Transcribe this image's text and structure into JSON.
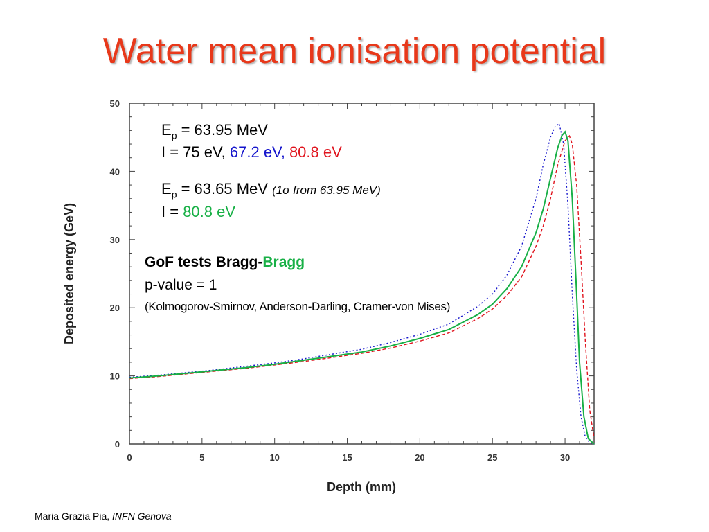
{
  "slide": {
    "title": "Water mean ionisation potential",
    "footer_author": "Maria Grazia Pia,",
    "footer_affiliation": "INFN Genova"
  },
  "annotations": {
    "block1_ep_label": "E",
    "block1_ep_sub": "p",
    "block1_ep_value": " = 63.95 MeV",
    "block1_i_prefix": "I = 75 eV, ",
    "block1_i_blue": "67.2 eV,",
    "block1_i_red": " 80.8 eV",
    "block2_ep_label": "E",
    "block2_ep_sub": "p",
    "block2_ep_value": " = 63.65 MeV ",
    "block2_sigma_note": "(1σ from 63.95 MeV)",
    "block2_i_prefix": "I = ",
    "block2_i_green": "80.8 eV",
    "gof_title_black": "GoF tests Bragg-",
    "gof_title_green": "Bragg",
    "gof_pvalue": "p-value = 1",
    "gof_tests": "(Kolmogorov-Smirnov, Anderson-Darling, Cramer-von Mises)"
  },
  "colors": {
    "title": "#e8381a",
    "blue": "#1515cc",
    "red": "#e0141e",
    "green": "#18b046"
  },
  "chart_data": {
    "type": "line",
    "xlabel": "Depth (mm)",
    "ylabel": "Deposited energy (GeV)",
    "xlim": [
      0,
      32
    ],
    "ylim": [
      0,
      50
    ],
    "xticks": [
      0,
      5,
      10,
      15,
      20,
      25,
      30
    ],
    "yticks": [
      0,
      10,
      20,
      30,
      40,
      50
    ],
    "series": [
      {
        "color": "#000000",
        "dash": "10,4",
        "x": [
          0,
          2,
          4,
          6,
          8,
          10,
          12,
          14,
          16,
          18,
          20,
          22,
          24,
          25,
          26,
          27,
          28,
          28.5,
          29,
          29.5,
          29.8,
          30.0,
          30.2,
          30.5,
          30.8,
          31.0,
          31.3,
          31.6,
          32
        ],
        "y": [
          9.7,
          10.0,
          10.4,
          10.8,
          11.2,
          11.7,
          12.3,
          12.9,
          13.5,
          14.4,
          15.5,
          16.8,
          19.0,
          20.5,
          22.8,
          26.0,
          31.0,
          34.5,
          39.0,
          43.5,
          45.3,
          45.8,
          44.5,
          36.0,
          22.0,
          12.0,
          4.0,
          0.8,
          0
        ]
      },
      {
        "color": "#1515cc",
        "dash": "2,3",
        "x": [
          0,
          2,
          4,
          6,
          8,
          10,
          12,
          14,
          16,
          18,
          20,
          22,
          24,
          25,
          26,
          27,
          27.5,
          28,
          28.5,
          29,
          29.3,
          29.6,
          29.9,
          30.2,
          30.5,
          30.8,
          31.1,
          31.4,
          31.7,
          32
        ],
        "y": [
          9.8,
          10.1,
          10.5,
          10.9,
          11.4,
          11.9,
          12.5,
          13.2,
          13.9,
          14.9,
          16.1,
          17.6,
          20.2,
          22.0,
          24.8,
          29.0,
          32.5,
          36.0,
          41.0,
          45.0,
          46.5,
          47.0,
          44.0,
          35.0,
          22.0,
          11.0,
          4.0,
          1.0,
          0.2,
          0
        ]
      },
      {
        "color": "#e0141e",
        "dash": "5,3",
        "x": [
          0,
          2,
          4,
          6,
          8,
          10,
          12,
          14,
          16,
          18,
          20,
          22,
          24,
          25,
          26,
          27,
          28,
          28.5,
          29,
          29.5,
          30,
          30.3,
          30.5,
          30.8,
          31.1,
          31.4,
          31.7,
          32
        ],
        "y": [
          9.6,
          9.9,
          10.3,
          10.7,
          11.1,
          11.6,
          12.1,
          12.7,
          13.3,
          14.1,
          15.1,
          16.3,
          18.4,
          19.8,
          21.8,
          24.5,
          29.0,
          32.0,
          36.0,
          41.0,
          44.5,
          45.2,
          44.0,
          38.0,
          27.0,
          15.0,
          5.0,
          0.8
        ]
      },
      {
        "color": "#18b046",
        "dash": "",
        "x": [
          0,
          2,
          4,
          6,
          8,
          10,
          12,
          14,
          16,
          18,
          20,
          22,
          24,
          25,
          26,
          27,
          28,
          28.5,
          29,
          29.5,
          29.8,
          30.0,
          30.2,
          30.5,
          30.8,
          31.0,
          31.3,
          31.6,
          32
        ],
        "y": [
          9.7,
          10.0,
          10.4,
          10.8,
          11.2,
          11.7,
          12.3,
          12.9,
          13.5,
          14.4,
          15.5,
          16.8,
          19.0,
          20.5,
          22.8,
          26.0,
          31.0,
          34.5,
          39.0,
          43.5,
          45.3,
          45.8,
          44.5,
          36.0,
          22.0,
          12.0,
          4.0,
          0.8,
          0
        ]
      }
    ]
  }
}
